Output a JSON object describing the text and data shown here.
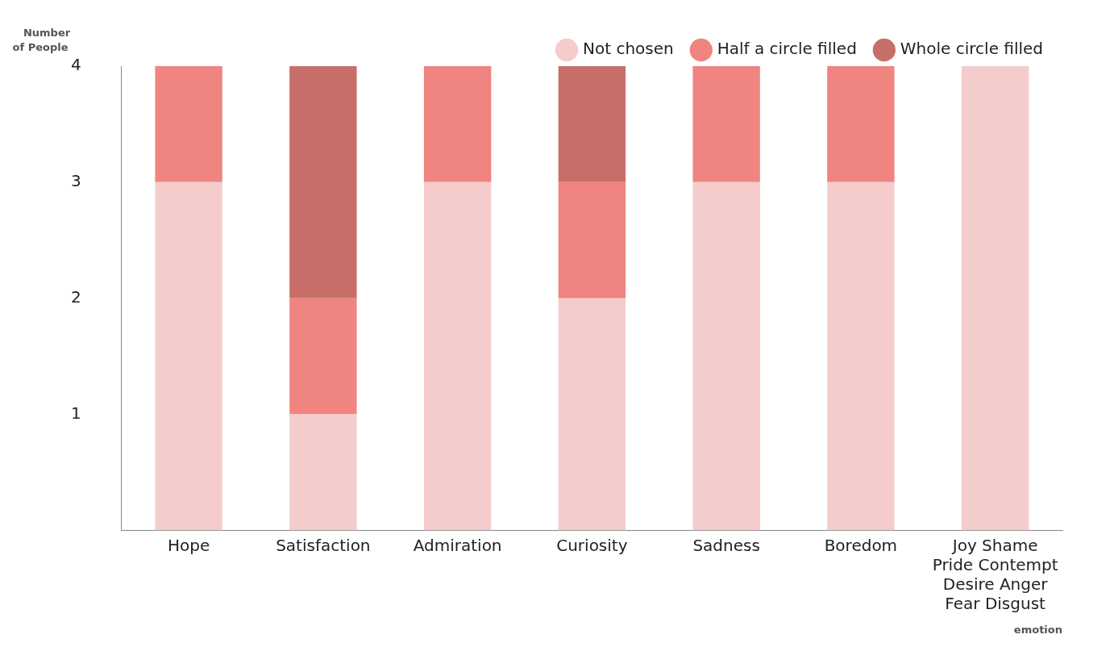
{
  "chart_data": {
    "type": "bar",
    "stacked": true,
    "ylabel": "Number of People",
    "xlabel": "emotion",
    "categories": [
      "Hope",
      "Satisfaction",
      "Admiration",
      "Curiosity",
      "Sadness",
      "Boredom",
      "Joy Shame\nPride Contempt\nDesire Anger\nFear Disgust"
    ],
    "series": [
      {
        "name": "Not chosen",
        "color": "#f4cccc",
        "values": [
          3,
          1,
          3,
          2,
          3,
          3,
          4
        ]
      },
      {
        "name": "Half a circle filled",
        "color": "#f08480",
        "values": [
          1,
          1,
          1,
          1,
          1,
          1,
          0
        ]
      },
      {
        "name": "Whole circle filled",
        "color": "#c86e68",
        "values": [
          0,
          2,
          0,
          1,
          0,
          0,
          0
        ]
      }
    ],
    "ylim": [
      0,
      4
    ],
    "yticks": [
      1,
      2,
      3,
      4
    ],
    "grid": false,
    "legend": "top right"
  }
}
